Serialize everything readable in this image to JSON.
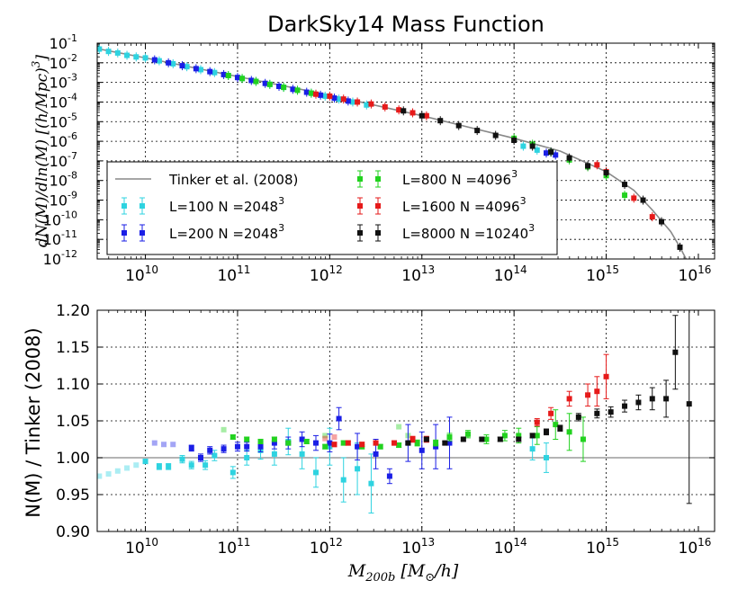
{
  "chart_data": [
    {
      "type": "scatter",
      "title": "DarkSky14 Mass Function",
      "xscale": "log",
      "yscale": "log",
      "xlim": [
        3000000000.0,
        1.5e+16
      ],
      "ylim": [
        1e-12,
        0.1
      ],
      "ylabel": "dN(M)/dln(M) [(h/Mpc)^3]",
      "x_ticks": [
        "10^10",
        "10^11",
        "10^12",
        "10^13",
        "10^14",
        "10^15",
        "10^16"
      ],
      "y_ticks": [
        "10^-12",
        "10^-11",
        "10^-10",
        "10^-9",
        "10^-8",
        "10^-7",
        "10^-6",
        "10^-5",
        "10^-4",
        "10^-3",
        "10^-2",
        "10^-1"
      ],
      "grid": true,
      "legend_position": "lower-left",
      "model": {
        "name": "Tinker et al. (2008)",
        "logx": [
          9.5,
          10,
          11,
          12,
          13,
          14,
          14.5,
          15,
          15.3,
          15.5,
          15.7,
          15.8,
          15.9,
          16.0
        ],
        "logy": [
          -1.3,
          -1.75,
          -2.7,
          -3.65,
          -4.7,
          -5.85,
          -6.5,
          -7.55,
          -8.5,
          -9.5,
          -10.6,
          -11.4,
          -12.3,
          -13.5
        ]
      },
      "series": [
        {
          "name": "L=100 N =2048",
          "exp": "3",
          "color": "#2ed3e0",
          "logx": [
            9.5,
            9.6,
            9.7,
            9.8,
            9.9,
            10.0,
            10.15,
            10.3,
            10.45,
            10.6,
            10.75,
            10.9,
            11.05,
            11.2,
            11.35,
            11.5,
            11.65,
            11.8,
            11.95,
            12.1,
            12.25,
            12.4,
            14.1,
            14.25,
            14.4
          ],
          "logy": [
            -1.3,
            -1.42,
            -1.5,
            -1.62,
            -1.7,
            -1.75,
            -1.9,
            -2.05,
            -2.2,
            -2.35,
            -2.5,
            -2.65,
            -2.8,
            -2.95,
            -3.1,
            -3.25,
            -3.4,
            -3.55,
            -3.7,
            -3.85,
            -4.0,
            -4.15,
            -6.25,
            -6.45,
            -6.55
          ]
        },
        {
          "name": "L=200 N =2048",
          "exp": "3",
          "color": "#1a1ee6",
          "logx": [
            10.1,
            10.25,
            10.4,
            10.55,
            10.7,
            10.85,
            11.0,
            11.15,
            11.3,
            11.45,
            11.6,
            11.75,
            11.9,
            12.05,
            12.2,
            14.35,
            14.45
          ],
          "logy": [
            -1.85,
            -2.0,
            -2.15,
            -2.3,
            -2.45,
            -2.6,
            -2.75,
            -2.9,
            -3.05,
            -3.2,
            -3.35,
            -3.5,
            -3.65,
            -3.8,
            -3.95,
            -6.6,
            -6.7
          ]
        },
        {
          "name": "L=800   N =4096",
          "exp": "3",
          "color": "#22d21f",
          "logx": [
            10.9,
            11.05,
            11.2,
            11.35,
            11.5,
            11.65,
            11.8,
            14.0,
            14.2,
            14.4,
            14.6,
            14.8,
            15.0,
            15.2
          ],
          "logy": [
            -2.65,
            -2.8,
            -2.95,
            -3.1,
            -3.25,
            -3.4,
            -3.55,
            -5.85,
            -6.15,
            -6.55,
            -6.95,
            -7.3,
            -7.75,
            -8.75
          ]
        },
        {
          "name": "L=1600 N =4096",
          "exp": "3",
          "color": "#e61a1a",
          "logx": [
            11.85,
            12.0,
            12.15,
            12.3,
            12.45,
            12.6,
            12.75,
            12.9,
            13.05,
            14.9,
            15.0,
            15.3,
            15.5
          ],
          "logy": [
            -3.6,
            -3.7,
            -3.85,
            -4.0,
            -4.1,
            -4.25,
            -4.4,
            -4.55,
            -4.7,
            -7.2,
            -7.55,
            -8.9,
            -9.85
          ]
        },
        {
          "name": "L=8000 N =10240",
          "exp": "3",
          "color": "#111111",
          "logx": [
            12.8,
            13.0,
            13.2,
            13.4,
            13.6,
            13.8,
            14.0,
            14.2,
            14.4,
            14.6,
            14.8,
            15.0,
            15.2,
            15.4,
            15.6,
            15.8
          ],
          "logy": [
            -4.45,
            -4.7,
            -4.95,
            -5.2,
            -5.45,
            -5.7,
            -5.95,
            -6.25,
            -6.55,
            -6.85,
            -7.25,
            -7.6,
            -8.2,
            -9.0,
            -10.1,
            -11.4
          ]
        }
      ]
    },
    {
      "type": "scatter",
      "title": "",
      "xscale": "log",
      "xlim": [
        3000000000.0,
        1.5e+16
      ],
      "ylim": [
        0.9,
        1.2
      ],
      "xlabel": "M_200b [M_sun/h]",
      "ylabel": "N(M) / Tinker (2008)",
      "x_ticks": [
        "10^10",
        "10^11",
        "10^12",
        "10^13",
        "10^14",
        "10^15",
        "10^16"
      ],
      "y_tick_labels": [
        "0.90",
        "0.95",
        "1.00",
        "1.05",
        "1.10",
        "1.15",
        "1.20"
      ],
      "y_tick_values": [
        0.9,
        0.95,
        1.0,
        1.05,
        1.1,
        1.15,
        1.2
      ],
      "reference_line": 1.0,
      "grid": true,
      "faded_points": [
        {
          "color": "#2ed3e0",
          "logx": [
            9.5,
            9.6,
            9.7,
            9.8,
            9.9
          ],
          "y": [
            0.975,
            0.978,
            0.982,
            0.986,
            0.99
          ]
        },
        {
          "color": "#1a1ee6",
          "logx": [
            10.1,
            10.2,
            10.3
          ],
          "y": [
            1.02,
            1.018,
            1.018
          ]
        },
        {
          "color": "#22d21f",
          "logx": [
            10.85,
            11.95,
            12.75,
            12.85
          ],
          "y": [
            1.038,
            1.03,
            1.042,
            1.03
          ]
        },
        {
          "color": "#e61a1a",
          "logx": [
            11.95,
            12.05
          ],
          "y": [
            1.026,
            1.028
          ]
        }
      ],
      "series": [
        {
          "name": "L=100",
          "color": "#2ed3e0",
          "logx": [
            10.0,
            10.15,
            10.25,
            10.4,
            10.5,
            10.65,
            10.75,
            10.95,
            11.1,
            11.25,
            11.4,
            11.55,
            11.7,
            11.85,
            12.0,
            12.15,
            12.3,
            12.45,
            14.2,
            14.35
          ],
          "y": [
            0.995,
            0.988,
            0.988,
            0.998,
            0.99,
            0.99,
            1.003,
            0.98,
            1.0,
            1.01,
            1.005,
            1.022,
            1.005,
            0.98,
            1.015,
            0.97,
            0.985,
            0.965,
            1.012,
            1.0
          ],
          "err": [
            0.003,
            0.004,
            0.004,
            0.005,
            0.005,
            0.006,
            0.007,
            0.008,
            0.01,
            0.012,
            0.015,
            0.018,
            0.02,
            0.02,
            0.025,
            0.03,
            0.035,
            0.04,
            0.015,
            0.02
          ]
        },
        {
          "name": "L=200",
          "color": "#1a1ee6",
          "logx": [
            10.5,
            10.6,
            10.7,
            10.85,
            11.0,
            11.1,
            11.25,
            11.4,
            11.55,
            11.7,
            11.85,
            12.0,
            12.1,
            12.3,
            12.5,
            12.65,
            12.85,
            13.0,
            13.15,
            13.3
          ],
          "y": [
            1.013,
            1.0,
            1.01,
            1.012,
            1.015,
            1.015,
            1.015,
            1.02,
            1.02,
            1.025,
            1.02,
            1.02,
            1.053,
            1.015,
            1.005,
            0.975,
            1.02,
            1.01,
            1.015,
            1.02
          ],
          "err": [
            0.004,
            0.005,
            0.005,
            0.005,
            0.006,
            0.006,
            0.007,
            0.008,
            0.008,
            0.01,
            0.01,
            0.012,
            0.015,
            0.018,
            0.02,
            0.01,
            0.025,
            0.025,
            0.03,
            0.035
          ]
        },
        {
          "name": "L=800",
          "color": "#22d21f",
          "logx": [
            10.95,
            11.1,
            11.25,
            11.4,
            11.55,
            11.75,
            11.95,
            12.15,
            12.35,
            12.55,
            12.75,
            12.95,
            13.15,
            13.3,
            13.5,
            13.7,
            13.9,
            14.05,
            14.25,
            14.45,
            14.6,
            14.75
          ],
          "y": [
            1.028,
            1.025,
            1.022,
            1.025,
            1.02,
            1.022,
            1.015,
            1.02,
            1.015,
            1.015,
            1.017,
            1.02,
            1.02,
            1.028,
            1.032,
            1.025,
            1.03,
            1.03,
            1.03,
            1.045,
            1.035,
            1.025
          ],
          "err": [
            0.003,
            0.003,
            0.003,
            0.003,
            0.003,
            0.003,
            0.003,
            0.003,
            0.003,
            0.003,
            0.003,
            0.004,
            0.004,
            0.005,
            0.005,
            0.006,
            0.007,
            0.01,
            0.012,
            0.02,
            0.025,
            0.03
          ]
        },
        {
          "name": "L=1600",
          "color": "#e61a1a",
          "logx": [
            12.05,
            12.2,
            12.35,
            12.5,
            12.7,
            12.9,
            13.05,
            14.25,
            14.4,
            14.6,
            14.8,
            14.9,
            15.0
          ],
          "y": [
            1.018,
            1.02,
            1.018,
            1.02,
            1.02,
            1.025,
            1.025,
            1.048,
            1.06,
            1.08,
            1.085,
            1.09,
            1.11
          ],
          "err": [
            0.003,
            0.003,
            0.003,
            0.003,
            0.003,
            0.004,
            0.004,
            0.005,
            0.008,
            0.01,
            0.015,
            0.02,
            0.03
          ]
        },
        {
          "name": "L=8000",
          "color": "#111111",
          "logx": [
            12.85,
            13.05,
            13.25,
            13.45,
            13.65,
            13.85,
            14.05,
            14.2,
            14.35,
            14.5,
            14.7,
            14.9,
            15.05,
            15.2,
            15.35,
            15.5,
            15.65,
            15.75
          ],
          "y": [
            1.02,
            1.025,
            1.02,
            1.025,
            1.025,
            1.025,
            1.025,
            1.03,
            1.035,
            1.04,
            1.055,
            1.06,
            1.062,
            1.07,
            1.075,
            1.08,
            1.08,
            1.143
          ],
          "err": [
            0.002,
            0.002,
            0.002,
            0.002,
            0.002,
            0.003,
            0.003,
            0.003,
            0.004,
            0.004,
            0.005,
            0.006,
            0.007,
            0.008,
            0.01,
            0.015,
            0.025,
            0.05
          ]
        },
        {
          "name": "L=8000 (tail)",
          "color": "#111111",
          "logx": [
            15.9
          ],
          "y": [
            1.073
          ],
          "err": [
            0.135
          ]
        }
      ]
    }
  ],
  "labels": {
    "title": "DarkSky14 Mass Function",
    "legend_model": "Tinker et al. (2008)",
    "legend_entries": [
      {
        "name": "L=100 N =2048",
        "exp": "3"
      },
      {
        "name": "L=200 N =2048",
        "exp": "3"
      },
      {
        "name": "L=800   N =4096",
        "exp": "3"
      },
      {
        "name": "L=1600 N =4096",
        "exp": "3"
      },
      {
        "name": "L=8000 N =10240",
        "exp": "3"
      }
    ],
    "top_ylabel_parts": [
      "dN(M)/dln(M) [(h/Mpc)",
      "3",
      "]"
    ],
    "bottom_ylabel": "N(M) / Tinker (2008)",
    "xlabel_parts": [
      "M",
      "200b",
      " [M",
      "⊙",
      "/h]"
    ]
  }
}
